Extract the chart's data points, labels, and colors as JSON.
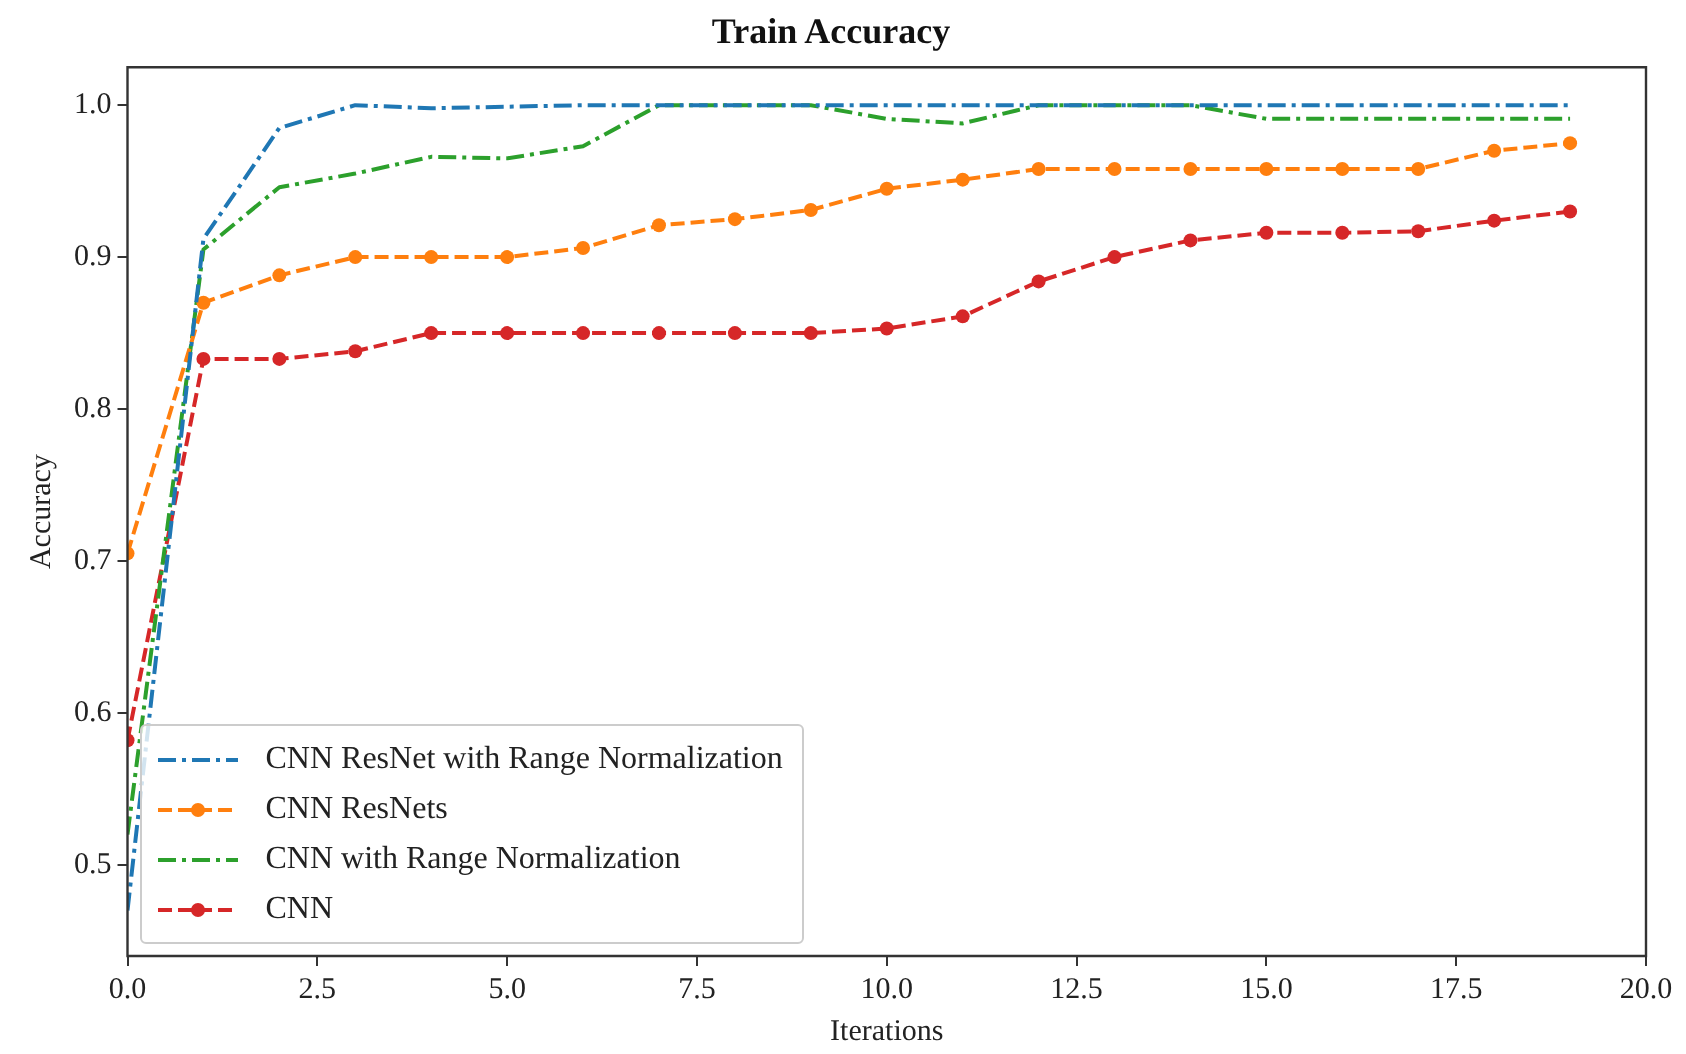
{
  "chart_data": {
    "type": "line",
    "title": "Train Accuracy",
    "xlabel": "Iterations",
    "ylabel": "Accuracy",
    "x": [
      0,
      1,
      2,
      3,
      4,
      5,
      6,
      7,
      8,
      9,
      10,
      11,
      12,
      13,
      14,
      15,
      16,
      17,
      18,
      19
    ],
    "xlim": [
      0,
      20
    ],
    "xticks": [
      {
        "value": 0,
        "label": "0.0"
      },
      {
        "value": 2.5,
        "label": "2.5"
      },
      {
        "value": 5,
        "label": "5.0"
      },
      {
        "value": 7.5,
        "label": "7.5"
      },
      {
        "value": 10,
        "label": "10.0"
      },
      {
        "value": 12.5,
        "label": "12.5"
      },
      {
        "value": 15,
        "label": "15.0"
      },
      {
        "value": 17.5,
        "label": "17.5"
      },
      {
        "value": 20,
        "label": "20.0"
      }
    ],
    "ylim": [
      0.44,
      1.025
    ],
    "yticks": [
      {
        "value": 0.5,
        "label": "0.5"
      },
      {
        "value": 0.6,
        "label": "0.6"
      },
      {
        "value": 0.7,
        "label": "0.7"
      },
      {
        "value": 0.8,
        "label": "0.8"
      },
      {
        "value": 0.9,
        "label": "0.9"
      },
      {
        "value": 1.0,
        "label": "1.0"
      }
    ],
    "grid": false,
    "legend": "bottom left",
    "series": [
      {
        "name": "CNN ResNet with Range Normalization",
        "color": "#1f77b4",
        "marker": "none",
        "line_style": "dashdot",
        "values": [
          0.47,
          0.912,
          0.985,
          1.0,
          0.998,
          0.999,
          1.0,
          1.0,
          1.0,
          1.0,
          1.0,
          1.0,
          1.0,
          1.0,
          1.0,
          1.0,
          1.0,
          1.0,
          1.0,
          1.0
        ]
      },
      {
        "name": "CNN ResNets",
        "color": "#ff7f0e",
        "marker": "circle",
        "line_style": "dashed",
        "values": [
          0.705,
          0.87,
          0.888,
          0.9,
          0.9,
          0.9,
          0.906,
          0.921,
          0.925,
          0.931,
          0.945,
          0.951,
          0.958,
          0.958,
          0.958,
          0.958,
          0.958,
          0.958,
          0.97,
          0.975
        ]
      },
      {
        "name": "CNN with Range Normalization",
        "color": "#2ca02c",
        "marker": "none",
        "line_style": "dashdot",
        "values": [
          0.52,
          0.905,
          0.946,
          0.955,
          0.966,
          0.965,
          0.973,
          1.0,
          1.0,
          1.0,
          0.991,
          0.988,
          1.0,
          1.0,
          1.0,
          0.991,
          0.991,
          0.991,
          0.991,
          0.991
        ]
      },
      {
        "name": "CNN",
        "color": "#d62728",
        "marker": "circle",
        "line_style": "dashed",
        "values": [
          0.582,
          0.833,
          0.833,
          0.838,
          0.85,
          0.85,
          0.85,
          0.85,
          0.85,
          0.85,
          0.853,
          0.861,
          0.884,
          0.9,
          0.911,
          0.916,
          0.916,
          0.917,
          0.924,
          0.93
        ]
      }
    ]
  }
}
